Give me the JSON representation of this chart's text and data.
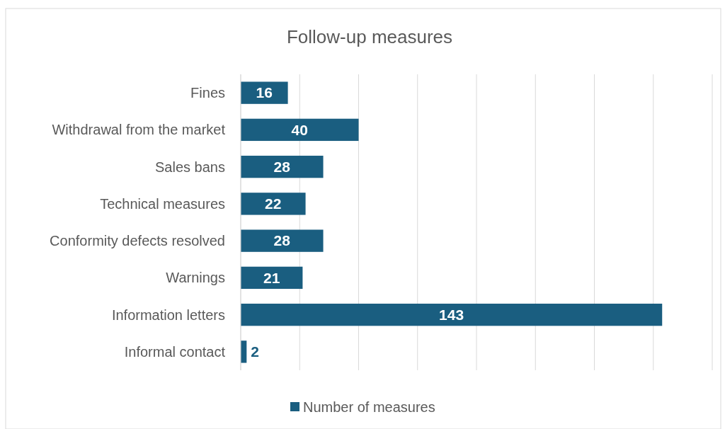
{
  "chart_data": {
    "type": "bar",
    "orientation": "horizontal",
    "title": "Follow-up measures",
    "categories": [
      "Fines",
      "Withdrawal from the market",
      "Sales bans",
      "Technical measures",
      "Conformity defects resolved",
      "Warnings",
      "Information letters",
      "Informal contact"
    ],
    "series": [
      {
        "name": "Number of measures",
        "color": "#1a5e80",
        "values": [
          16,
          40,
          28,
          22,
          28,
          21,
          143,
          2
        ]
      }
    ],
    "xlim": [
      0,
      160
    ],
    "xticks": [
      {
        "value": 0,
        "label": null
      },
      {
        "value": 20,
        "label": null
      },
      {
        "value": 40,
        "label": null
      },
      {
        "value": 60,
        "label": null
      },
      {
        "value": 80,
        "label": null
      },
      {
        "value": 100,
        "label": null
      },
      {
        "value": 120,
        "label": null
      },
      {
        "value": 140,
        "label": null
      },
      {
        "value": 160,
        "label": null
      }
    ],
    "tick_labels": "y",
    "grid": "x",
    "legend": "bottom",
    "data_labels": true
  }
}
